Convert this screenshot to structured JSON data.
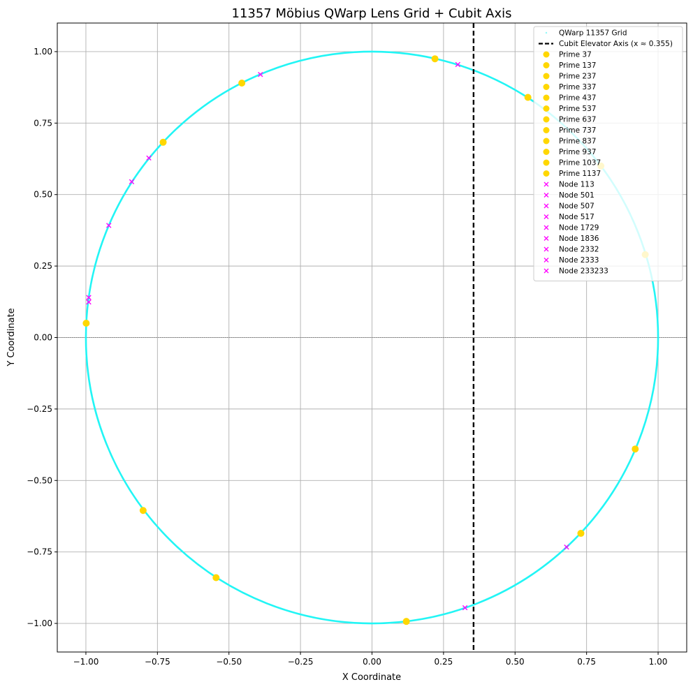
{
  "chart_data": {
    "type": "scatter",
    "title": "11357 Möbius QWarp Lens Grid + Cubit Axis",
    "xlabel": "X Coordinate",
    "ylabel": "Y Coordinate",
    "xlim": [
      -1.1,
      1.1
    ],
    "ylim": [
      -1.1,
      1.1
    ],
    "xticks": [
      -1.0,
      -0.75,
      -0.5,
      -0.25,
      0.0,
      0.25,
      0.5,
      0.75,
      1.0
    ],
    "yticks": [
      -1.0,
      -0.75,
      -0.5,
      -0.25,
      0.0,
      0.25,
      0.5,
      0.75,
      1.0
    ],
    "xtick_labels": [
      "−1.00",
      "−0.75",
      "−0.50",
      "−0.25",
      "0.00",
      "0.25",
      "0.50",
      "0.75",
      "1.00"
    ],
    "ytick_labels": [
      "−1.00",
      "−0.75",
      "−0.50",
      "−0.25",
      "0.00",
      "0.25",
      "0.50",
      "0.75",
      "1.00"
    ],
    "grid": true,
    "legend_position": "top-right",
    "colors": {
      "grid_circle": "#22f5f5",
      "prime": "#ffd700",
      "node": "#ff00ff",
      "axis": "#000000"
    },
    "grid_circle": {
      "name": "QWarp 11357 Grid",
      "center": [
        0,
        0
      ],
      "radius": 1.0
    },
    "cubit_axis": {
      "name": "Cubit Elevator Axis (x ≈ 0.355)",
      "x": 0.355
    },
    "zero_line": {
      "y": 0.0
    },
    "primes": [
      {
        "name": "Prime 37",
        "x": 0.22,
        "y": 0.975
      },
      {
        "name": "Prime 137",
        "x": 0.545,
        "y": 0.84
      },
      {
        "name": "Prime 237",
        "x": 0.8,
        "y": 0.6
      },
      {
        "name": "Prime 337",
        "x": 0.955,
        "y": 0.29
      },
      {
        "name": "Prime 437",
        "x": 0.92,
        "y": -0.39
      },
      {
        "name": "Prime 537",
        "x": 0.73,
        "y": -0.685
      },
      {
        "name": "Prime 637",
        "x": 0.12,
        "y": -0.993
      },
      {
        "name": "Prime 737",
        "x": -0.545,
        "y": -0.84
      },
      {
        "name": "Prime 837",
        "x": -0.8,
        "y": -0.605
      },
      {
        "name": "Prime 937",
        "x": -0.999,
        "y": 0.05
      },
      {
        "name": "Prime 1037",
        "x": -0.73,
        "y": 0.683
      },
      {
        "name": "Prime 1137",
        "x": -0.455,
        "y": 0.89
      }
    ],
    "nodes": [
      {
        "name": "Node 113",
        "x": -0.39,
        "y": 0.92
      },
      {
        "name": "Node 501",
        "x": -0.78,
        "y": 0.628
      },
      {
        "name": "Node 507",
        "x": -0.84,
        "y": 0.545
      },
      {
        "name": "Node 517",
        "x": -0.92,
        "y": 0.392
      },
      {
        "name": "Node 1729",
        "x": -0.99,
        "y": 0.14
      },
      {
        "name": "Node 1836",
        "x": -0.99,
        "y": 0.124
      },
      {
        "name": "Node 2332",
        "x": 0.68,
        "y": -0.733
      },
      {
        "name": "Node 2333",
        "x": 0.325,
        "y": -0.945
      },
      {
        "name": "Node 233233",
        "x": 0.3,
        "y": 0.955
      }
    ]
  }
}
